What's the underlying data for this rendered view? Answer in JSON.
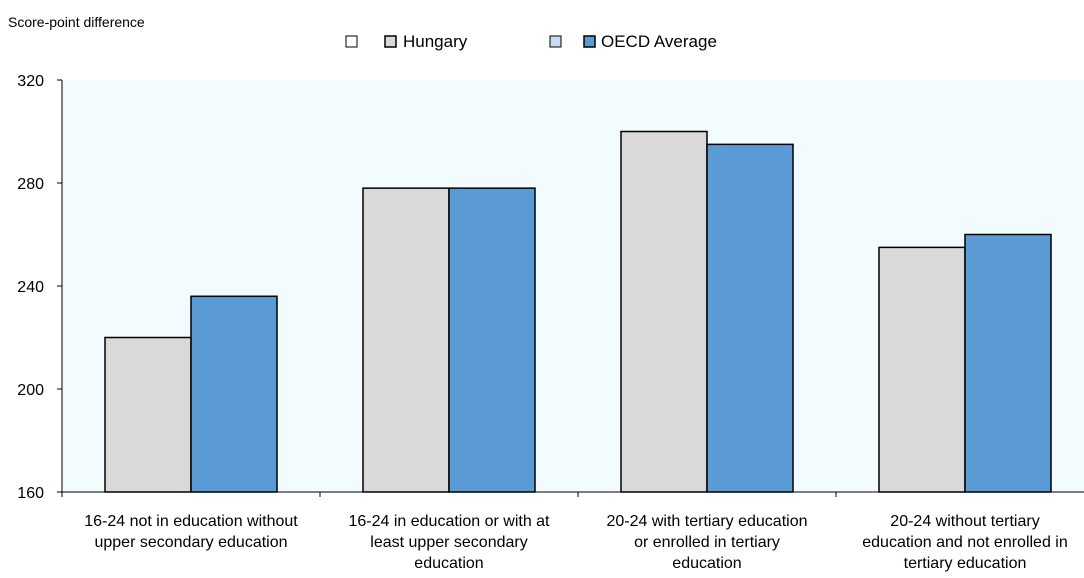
{
  "chart_data": {
    "type": "bar",
    "ylabel": "Score-point difference",
    "ylim": [
      160,
      320
    ],
    "yticks": [
      160,
      200,
      240,
      280,
      320
    ],
    "categories": [
      [
        "16-24 not in education without",
        "upper secondary education"
      ],
      [
        "16-24 in education or with at",
        "least upper secondary",
        "education"
      ],
      [
        "20-24  with tertiary education",
        "or enrolled in tertiary",
        "education"
      ],
      [
        "20-24 without tertiary",
        "education and not enrolled in",
        "tertiary education"
      ]
    ],
    "series": [
      {
        "name": "Hungary",
        "color": "#d9d9d9",
        "values": [
          220,
          278,
          300,
          255
        ]
      },
      {
        "name": "OECD Average",
        "color": "#5b9bd5",
        "values": [
          236,
          278,
          295,
          260
        ]
      }
    ],
    "legend_position": "top-center",
    "plot_background": "#f2fcff",
    "grid": false
  }
}
